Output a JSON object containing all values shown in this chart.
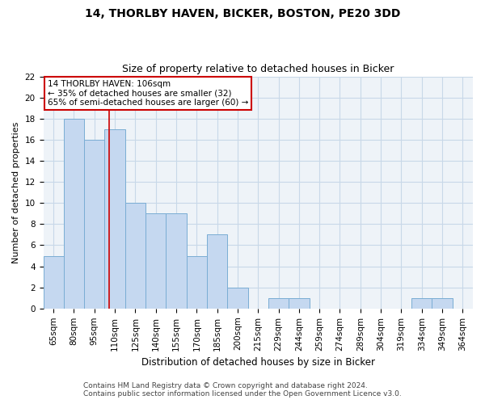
{
  "title1": "14, THORLBY HAVEN, BICKER, BOSTON, PE20 3DD",
  "title2": "Size of property relative to detached houses in Bicker",
  "xlabel": "Distribution of detached houses by size in Bicker",
  "ylabel": "Number of detached properties",
  "categories": [
    "65sqm",
    "80sqm",
    "95sqm",
    "110sqm",
    "125sqm",
    "140sqm",
    "155sqm",
    "170sqm",
    "185sqm",
    "200sqm",
    "215sqm",
    "229sqm",
    "244sqm",
    "259sqm",
    "274sqm",
    "289sqm",
    "304sqm",
    "319sqm",
    "334sqm",
    "349sqm",
    "364sqm"
  ],
  "values": [
    5,
    18,
    16,
    17,
    10,
    9,
    9,
    5,
    7,
    2,
    0,
    1,
    1,
    0,
    0,
    0,
    0,
    0,
    1,
    1,
    0
  ],
  "bar_color": "#c5d8f0",
  "bar_edgecolor": "#7aadd4",
  "bar_width": 1.0,
  "ylim": [
    0,
    22
  ],
  "yticks": [
    0,
    2,
    4,
    6,
    8,
    10,
    12,
    14,
    16,
    18,
    20,
    22
  ],
  "property_size_sqm": 106,
  "red_line_color": "#cc0000",
  "annotation_text1": "14 THORLBY HAVEN: 106sqm",
  "annotation_text2": "← 35% of detached houses are smaller (32)",
  "annotation_text3": "65% of semi-detached houses are larger (60) →",
  "annotation_box_edgecolor": "#cc0000",
  "annotation_box_facecolor": "#ffffff",
  "grid_color": "#c8d8e8",
  "bg_color": "#eef3f8",
  "footer1": "Contains HM Land Registry data © Crown copyright and database right 2024.",
  "footer2": "Contains public sector information licensed under the Open Government Licence v3.0.",
  "title1_fontsize": 10,
  "title2_fontsize": 9,
  "xlabel_fontsize": 8.5,
  "ylabel_fontsize": 8,
  "tick_fontsize": 7.5,
  "annotation_fontsize": 7.5,
  "footer_fontsize": 6.5
}
